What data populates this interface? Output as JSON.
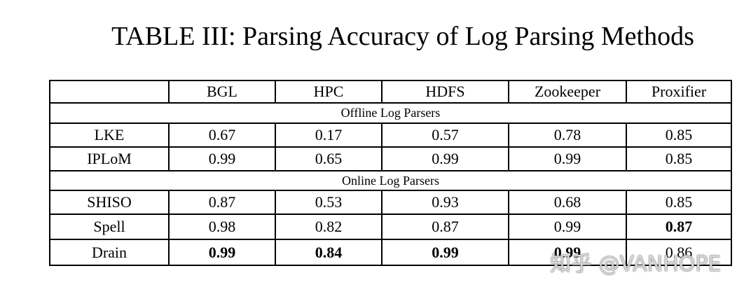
{
  "title": "TABLE III: Parsing Accuracy of Log Parsing Methods",
  "table": {
    "columns": [
      "BGL",
      "HPC",
      "HDFS",
      "Zookeeper",
      "Proxifier"
    ],
    "sections": [
      {
        "title": "Offline Log Parsers",
        "rows": [
          {
            "name": "LKE",
            "values": [
              "0.67",
              "0.17",
              "0.57",
              "0.78",
              "0.85"
            ]
          },
          {
            "name": "IPLoM",
            "values": [
              "0.99",
              "0.65",
              "0.99",
              "0.99",
              "0.85"
            ]
          }
        ]
      },
      {
        "title": "Online Log Parsers",
        "rows": [
          {
            "name": "SHISO",
            "values": [
              "0.87",
              "0.53",
              "0.93",
              "0.68",
              "0.85"
            ]
          },
          {
            "name": "Spell",
            "values": [
              "0.98",
              "0.82",
              "0.87",
              "0.99",
              "0.87"
            ],
            "bold": [
              4
            ]
          },
          {
            "name": "Drain",
            "values": [
              "0.99",
              "0.84",
              "0.99",
              "0.99",
              "0.86"
            ],
            "bold": [
              0,
              1,
              2,
              3
            ]
          }
        ]
      }
    ]
  },
  "watermark": "知乎 @VANHOPE"
}
